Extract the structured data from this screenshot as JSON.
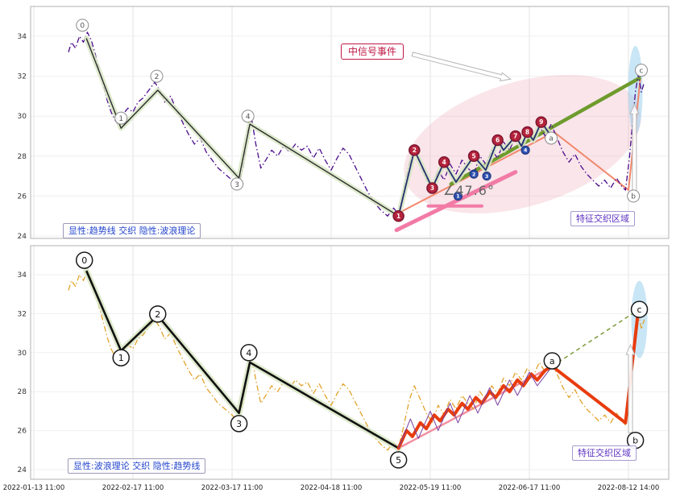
{
  "chart_data": {
    "type": "line",
    "x_tick_labels": [
      "2022-01-13 11:00",
      "2022-02-17 11:00",
      "2022-03-17 11:00",
      "2022-04-18 11:00",
      "2022-05-19 11:00",
      "2022-06-17 11:00",
      "2022-08-12 14:00"
    ],
    "yticks": [
      24,
      26,
      28,
      30,
      32,
      34
    ],
    "ylim": [
      23.4,
      35.2
    ],
    "annotations": {
      "signal_event": "中信号事件",
      "angle": "∠47.6°",
      "top_legend": "显性:趋势线 交织 隐性:波浪理论",
      "top_region": "特征交织区域",
      "bottom_legend": "显性:波浪理论 交织 隐性:趋势线",
      "bottom_region": "特征交织区域"
    },
    "shared": {
      "price": [
        [
          0.35,
          33.2
        ],
        [
          0.38,
          33.7
        ],
        [
          0.42,
          33.4
        ],
        [
          0.46,
          34.0
        ],
        [
          0.5,
          33.7
        ],
        [
          0.54,
          34.2
        ],
        [
          0.58,
          33.8
        ],
        [
          0.62,
          33.1
        ],
        [
          0.66,
          32.3
        ],
        [
          0.7,
          31.6
        ],
        [
          0.74,
          30.8
        ],
        [
          0.78,
          30.2
        ],
        [
          0.82,
          29.8
        ],
        [
          0.86,
          29.5
        ],
        [
          0.9,
          30.1
        ],
        [
          0.95,
          30.4
        ],
        [
          1.0,
          30.2
        ],
        [
          1.05,
          30.7
        ],
        [
          1.1,
          30.9
        ],
        [
          1.16,
          31.3
        ],
        [
          1.22,
          31.7
        ],
        [
          1.27,
          31.3
        ],
        [
          1.32,
          30.7
        ],
        [
          1.38,
          31.0
        ],
        [
          1.44,
          30.3
        ],
        [
          1.5,
          29.7
        ],
        [
          1.56,
          29.1
        ],
        [
          1.62,
          28.6
        ],
        [
          1.68,
          28.9
        ],
        [
          1.74,
          28.2
        ],
        [
          1.8,
          27.8
        ],
        [
          1.86,
          27.4
        ],
        [
          1.93,
          27.1
        ],
        [
          2.0,
          26.8
        ],
        [
          2.06,
          26.5
        ],
        [
          2.11,
          27.4
        ],
        [
          2.16,
          29.3
        ],
        [
          2.2,
          29.8
        ],
        [
          2.24,
          28.6
        ],
        [
          2.29,
          27.4
        ],
        [
          2.34,
          27.8
        ],
        [
          2.4,
          28.3
        ],
        [
          2.46,
          28.0
        ],
        [
          2.52,
          28.5
        ],
        [
          2.58,
          28.2
        ],
        [
          2.64,
          28.6
        ],
        [
          2.7,
          28.3
        ],
        [
          2.76,
          28.5
        ],
        [
          2.82,
          27.9
        ],
        [
          2.88,
          28.4
        ],
        [
          2.94,
          27.8
        ],
        [
          3.0,
          27.3
        ],
        [
          3.06,
          27.9
        ],
        [
          3.12,
          28.4
        ],
        [
          3.18,
          28.1
        ],
        [
          3.24,
          27.5
        ],
        [
          3.3,
          26.9
        ],
        [
          3.36,
          26.3
        ],
        [
          3.43,
          25.7
        ],
        [
          3.5,
          25.3
        ],
        [
          3.57,
          25.0
        ],
        [
          3.63,
          25.4
        ],
        [
          3.68,
          25.1
        ],
        [
          3.73,
          26.2
        ],
        [
          3.79,
          27.6
        ],
        [
          3.84,
          28.3
        ],
        [
          3.9,
          27.6
        ],
        [
          3.96,
          26.9
        ],
        [
          4.02,
          26.4
        ],
        [
          4.08,
          27.3
        ],
        [
          4.14,
          26.8
        ],
        [
          4.2,
          27.6
        ],
        [
          4.26,
          27.1
        ],
        [
          4.32,
          27.8
        ],
        [
          4.38,
          27.4
        ],
        [
          4.44,
          27.1
        ],
        [
          4.5,
          28.0
        ],
        [
          4.56,
          27.6
        ],
        [
          4.62,
          28.3
        ],
        [
          4.68,
          27.9
        ],
        [
          4.74,
          28.7
        ],
        [
          4.8,
          28.3
        ],
        [
          4.86,
          29.0
        ],
        [
          4.92,
          28.6
        ],
        [
          4.98,
          29.2
        ],
        [
          5.04,
          28.8
        ],
        [
          5.1,
          29.5
        ],
        [
          5.16,
          29.0
        ],
        [
          5.22,
          29.6
        ],
        [
          5.28,
          28.9
        ],
        [
          5.34,
          28.2
        ],
        [
          5.4,
          27.7
        ],
        [
          5.46,
          28.1
        ],
        [
          5.52,
          27.5
        ],
        [
          5.58,
          27.1
        ],
        [
          5.64,
          26.8
        ],
        [
          5.7,
          26.5
        ],
        [
          5.76,
          26.8
        ],
        [
          5.82,
          26.4
        ],
        [
          5.88,
          26.9
        ],
        [
          5.93,
          26.5
        ],
        [
          5.97,
          26.3
        ],
        [
          6.01,
          27.9
        ],
        [
          6.04,
          29.6
        ],
        [
          6.07,
          31.2
        ],
        [
          6.1,
          32.1
        ],
        [
          6.13,
          31.2
        ],
        [
          6.16,
          31.7
        ]
      ]
    },
    "panels": [
      {
        "id": "top",
        "pink_ellipse": {
          "u": 4.93,
          "p": 28.6,
          "rx": 152,
          "ry": 77,
          "rot": -17
        },
        "blue_ellipse": {
          "u": 6.07,
          "p": 31.3,
          "rx": 9,
          "ry": 55
        },
        "series": [
          {
            "name": "pink-angle-hypotenuse",
            "points": [
              [
                3.66,
                24.3
              ],
              [
                4.86,
                27.2
              ]
            ],
            "color": "#f27ba6",
            "width": 5,
            "cap": "round"
          },
          {
            "name": "pink-angle-base",
            "points": [
              [
                3.98,
                25.5
              ],
              [
                4.52,
                25.5
              ]
            ],
            "color": "#f27ba6",
            "width": 4,
            "cap": "round"
          },
          {
            "name": "salmon-wave",
            "points": [
              [
                3.7,
                25.2
              ],
              [
                5.25,
                29.2
              ],
              [
                6.0,
                26.3
              ],
              [
                6.12,
                31.9
              ]
            ],
            "color": "#f2876b",
            "width": 2
          },
          {
            "name": "green-trendline",
            "points": [
              [
                4.21,
                26.6
              ],
              [
                6.11,
                31.9
              ]
            ],
            "color": "#6f9b2d",
            "width": 4.5,
            "cap": "round"
          },
          {
            "name": "price-line",
            "ref": "price",
            "color": "#4b0a8c",
            "width": 1.3,
            "dash": "7 3 1.5 3"
          },
          {
            "name": "wave-line",
            "points": [
              [
                0.53,
                33.9
              ],
              [
                0.88,
                29.4
              ],
              [
                1.25,
                31.3
              ],
              [
                2.07,
                26.9
              ],
              [
                2.18,
                29.6
              ],
              [
                3.68,
                25.0
              ]
            ],
            "color": "#2b2b2b",
            "width": 1.4,
            "glow": "#d8e6c4"
          },
          {
            "name": "signal-zigzag",
            "points": [
              [
                3.68,
                25.0
              ],
              [
                3.84,
                28.3
              ],
              [
                4.02,
                26.4
              ],
              [
                4.14,
                27.7
              ],
              [
                4.26,
                26.7
              ],
              [
                4.44,
                28.0
              ],
              [
                4.56,
                27.3
              ],
              [
                4.68,
                28.8
              ],
              [
                4.74,
                28.3
              ],
              [
                4.86,
                29.0
              ],
              [
                4.92,
                28.5
              ],
              [
                4.98,
                29.2
              ],
              [
                5.04,
                28.8
              ],
              [
                5.12,
                29.7
              ],
              [
                5.22,
                29.0
              ]
            ],
            "color": "#23306e",
            "width": 1.8,
            "glow": "#d8e6c4"
          }
        ],
        "arrows": [
          {
            "name": "signal-arrow",
            "from": [
              3.82,
              33.1
            ],
            "to": [
              4.81,
              31.85
            ],
            "w": 2.5
          },
          {
            "name": "up-arrow-top",
            "from": [
              6.06,
              26.1
            ],
            "to": [
              6.06,
              30.6
            ],
            "w": 2.5
          }
        ],
        "red_markers": [
          {
            "label": "1",
            "u": 3.68,
            "p": 25.0
          },
          {
            "label": "2",
            "u": 3.84,
            "p": 28.3
          },
          {
            "label": "3",
            "u": 4.02,
            "p": 26.4
          },
          {
            "label": "4",
            "u": 4.14,
            "p": 27.7
          },
          {
            "label": "5",
            "u": 4.44,
            "p": 28.0
          },
          {
            "label": "6",
            "u": 4.68,
            "p": 28.8
          },
          {
            "label": "7",
            "u": 4.86,
            "p": 29.0
          },
          {
            "label": "8",
            "u": 4.98,
            "p": 29.2
          },
          {
            "label": "9",
            "u": 5.12,
            "p": 29.7
          }
        ],
        "blue_markers": [
          {
            "label": "1",
            "u": 4.28,
            "p": 26.0
          },
          {
            "label": "2",
            "u": 4.44,
            "p": 27.1
          },
          {
            "label": "3",
            "u": 4.57,
            "p": 27.0
          },
          {
            "label": "4",
            "u": 4.96,
            "p": 28.3
          }
        ],
        "wave_circles": [
          {
            "label": "0",
            "u": 0.49,
            "p": 34.55
          },
          {
            "label": "1",
            "u": 0.88,
            "p": 29.9
          },
          {
            "label": "2",
            "u": 1.24,
            "p": 32.0
          },
          {
            "label": "3",
            "u": 2.05,
            "p": 26.6
          },
          {
            "label": "4",
            "u": 2.16,
            "p": 30.0
          },
          {
            "label": "a",
            "u": 5.22,
            "p": 28.9
          },
          {
            "label": "b",
            "u": 6.05,
            "p": 26.0
          },
          {
            "label": "c",
            "u": 6.13,
            "p": 32.3
          }
        ]
      },
      {
        "id": "bottom",
        "blue_ellipse": {
          "u": 6.11,
          "p": 31.7,
          "rx": 10,
          "ry": 48
        },
        "series": [
          {
            "name": "pink-support-line",
            "points": [
              [
                3.68,
                25.1
              ],
              [
                5.23,
                29.3
              ]
            ],
            "color": "#f28fa0",
            "width": 2.5
          },
          {
            "name": "green-dashed-line",
            "points": [
              [
                5.23,
                29.3
              ],
              [
                6.1,
                32.2
              ]
            ],
            "color": "#7f9b3a",
            "width": 1.5,
            "dash": "5 4"
          },
          {
            "name": "price-line",
            "ref": "price",
            "color": "#e2a32a",
            "width": 1.3,
            "dash": "7 3 1.5 3"
          },
          {
            "name": "wave-line",
            "points": [
              [
                0.53,
                34.2
              ],
              [
                0.88,
                30.1
              ],
              [
                1.25,
                31.9
              ],
              [
                2.07,
                26.9
              ],
              [
                2.18,
                29.5
              ],
              [
                3.68,
                25.1
              ]
            ],
            "color": "#111111",
            "width": 2.6,
            "glow": "#d8e6c4"
          },
          {
            "name": "impulse-red-wave",
            "points": [
              [
                3.68,
                25.1
              ],
              [
                3.76,
                26.0
              ],
              [
                3.82,
                25.7
              ],
              [
                3.9,
                26.4
              ],
              [
                3.96,
                26.1
              ],
              [
                4.04,
                26.8
              ],
              [
                4.1,
                26.5
              ],
              [
                4.18,
                27.1
              ],
              [
                4.24,
                26.8
              ],
              [
                4.32,
                27.4
              ],
              [
                4.38,
                27.1
              ],
              [
                4.46,
                27.7
              ],
              [
                4.52,
                27.4
              ],
              [
                4.6,
                28.0
              ],
              [
                4.66,
                27.7
              ],
              [
                4.74,
                28.3
              ],
              [
                4.8,
                28.0
              ],
              [
                4.88,
                28.6
              ],
              [
                4.94,
                28.3
              ],
              [
                5.02,
                28.9
              ],
              [
                5.08,
                28.6
              ],
              [
                5.16,
                29.1
              ],
              [
                5.23,
                29.3
              ],
              [
                5.97,
                26.4
              ],
              [
                6.1,
                32.2
              ]
            ],
            "color": "#e83c0e",
            "width": 4,
            "cap": "round"
          },
          {
            "name": "purple-weave-zigzag",
            "points": [
              [
                3.68,
                25.1
              ],
              [
                3.8,
                26.6
              ],
              [
                3.88,
                25.6
              ],
              [
                4.0,
                27.0
              ],
              [
                4.08,
                26.0
              ],
              [
                4.2,
                27.4
              ],
              [
                4.28,
                26.4
              ],
              [
                4.4,
                27.8
              ],
              [
                4.48,
                26.9
              ],
              [
                4.6,
                28.2
              ],
              [
                4.68,
                27.3
              ],
              [
                4.8,
                28.6
              ],
              [
                4.88,
                27.8
              ],
              [
                5.0,
                29.0
              ],
              [
                5.08,
                28.3
              ],
              [
                5.23,
                29.3
              ]
            ],
            "color": "#7a3fa0",
            "width": 1
          }
        ],
        "arrows": [
          {
            "name": "up-arrow-bottom",
            "from": [
              6.02,
              25.9
            ],
            "to": [
              6.02,
              30.4
            ],
            "w": 2.5
          }
        ],
        "red_markers": [],
        "blue_markers": [],
        "wave_circles": [
          {
            "label": "0",
            "u": 0.51,
            "p": 34.74
          },
          {
            "label": "1",
            "u": 0.88,
            "p": 29.74
          },
          {
            "label": "2",
            "u": 1.25,
            "p": 31.98
          },
          {
            "label": "3",
            "u": 2.07,
            "p": 26.36
          },
          {
            "label": "4",
            "u": 2.17,
            "p": 30.0
          },
          {
            "label": "5",
            "u": 3.68,
            "p": 24.5
          },
          {
            "label": "a",
            "u": 5.23,
            "p": 29.58
          },
          {
            "label": "b",
            "u": 6.07,
            "p": 25.5
          },
          {
            "label": "c",
            "u": 6.11,
            "p": 32.22
          }
        ]
      }
    ]
  }
}
